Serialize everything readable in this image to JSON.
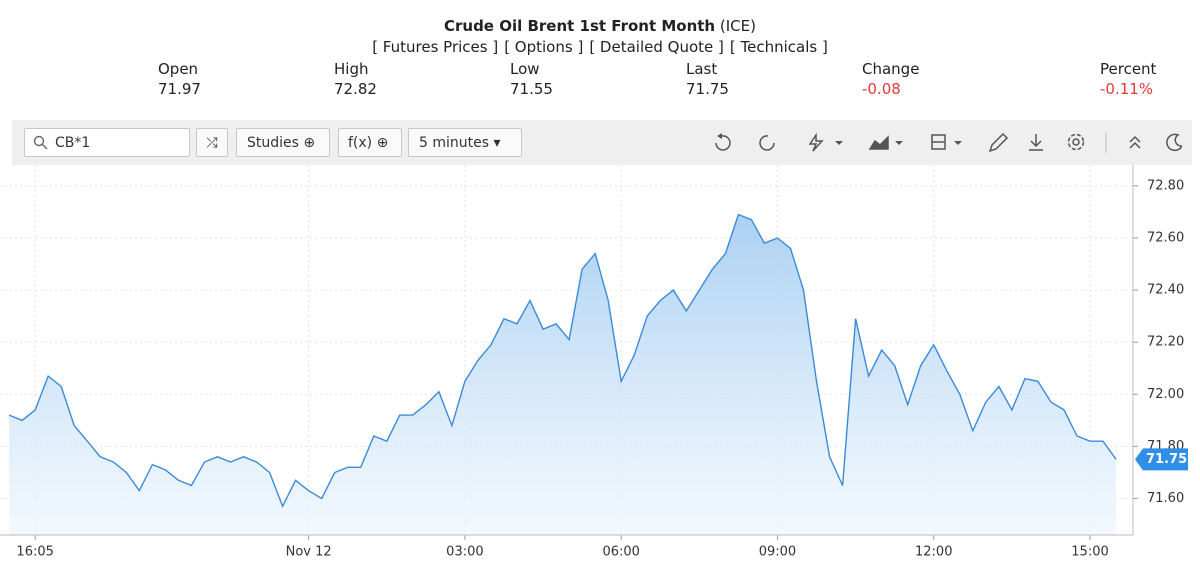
{
  "header": {
    "title": "Crude Oil Brent 1st Front Month",
    "exchange": "(ICE)",
    "links": [
      "[ Futures Prices ]",
      "[ Options ]",
      "[ Detailed Quote ]",
      "[ Technicals ]"
    ],
    "quotes": [
      {
        "label": "Open",
        "value": "71.97"
      },
      {
        "label": "High",
        "value": "72.82"
      },
      {
        "label": "Low",
        "value": "71.55"
      },
      {
        "label": "Last",
        "value": "71.75"
      },
      {
        "label": "Change",
        "value": "-0.08"
      },
      {
        "label": "Percent",
        "value": "-0.11%"
      }
    ]
  },
  "toolbar": {
    "symbol": "CB*1",
    "studies": "Studies",
    "fx": "f(x)",
    "interval": "5 minutes"
  },
  "chart_data": {
    "type": "line",
    "color": "#3b8ad8",
    "values": [
      71.92,
      71.9,
      71.94,
      72.07,
      72.03,
      71.88,
      71.82,
      71.76,
      71.74,
      71.7,
      71.63,
      71.73,
      71.71,
      71.67,
      71.65,
      71.74,
      71.76,
      71.74,
      71.76,
      71.74,
      71.7,
      71.57,
      71.67,
      71.63,
      71.6,
      71.7,
      71.72,
      71.72,
      71.84,
      71.82,
      71.92,
      71.92,
      71.96,
      72.01,
      71.88,
      72.05,
      72.13,
      72.19,
      72.29,
      72.27,
      72.36,
      72.25,
      72.27,
      72.21,
      72.48,
      72.54,
      72.36,
      72.05,
      72.15,
      72.3,
      72.36,
      72.4,
      72.32,
      72.4,
      72.48,
      72.54,
      72.69,
      72.67,
      72.58,
      72.6,
      72.56,
      72.4,
      72.05,
      71.76,
      71.65,
      72.29,
      72.07,
      72.17,
      72.11,
      71.96,
      72.11,
      72.19,
      72.09,
      72.0,
      71.86,
      71.97,
      72.03,
      71.94,
      72.06,
      72.05,
      71.97,
      71.94,
      71.84,
      71.82,
      71.82,
      71.75
    ],
    "xlim": [
      -0.7,
      86.3
    ],
    "xticks": [
      {
        "value": 2,
        "label": "16:05"
      },
      {
        "value": 23,
        "label": "Nov 12"
      },
      {
        "value": 35,
        "label": "03:00"
      },
      {
        "value": 47,
        "label": "06:00"
      },
      {
        "value": 59,
        "label": "09:00"
      },
      {
        "value": 71,
        "label": "12:00"
      },
      {
        "value": 83,
        "label": "15:00"
      }
    ],
    "ylim": [
      71.46,
      72.88
    ],
    "yticks": [
      {
        "value": 71.6,
        "label": "71.60"
      },
      {
        "value": 71.8,
        "label": "71.80"
      },
      {
        "value": 72.0,
        "label": "72.00"
      },
      {
        "value": 72.2,
        "label": "72.20"
      },
      {
        "value": 72.4,
        "label": "72.40"
      },
      {
        "value": 72.6,
        "label": "72.60"
      },
      {
        "value": 72.8,
        "label": "72.80"
      }
    ],
    "grid": true
  }
}
